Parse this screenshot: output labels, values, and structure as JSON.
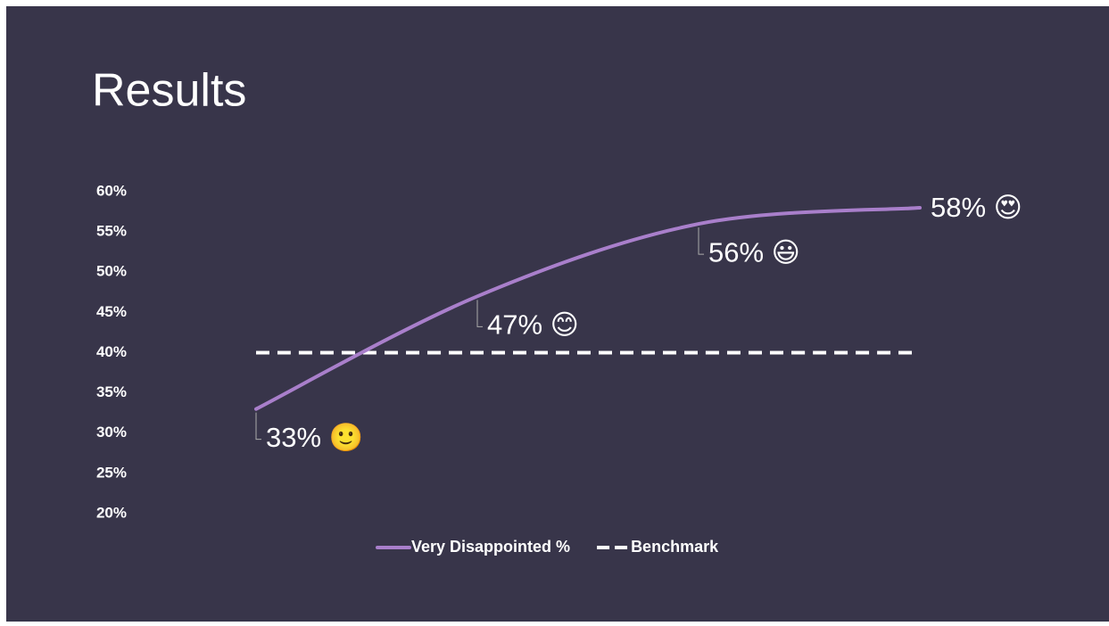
{
  "chart_data": {
    "type": "line",
    "title": "Results",
    "categories": [
      null,
      null,
      null,
      null
    ],
    "series": [
      {
        "name": "Very Disappointed %",
        "color": "#a97fcb",
        "dashed": false,
        "values": [
          33,
          47,
          56,
          58
        ],
        "value_labels": [
          "33% 🙂",
          "47% 😊",
          "56% 😃",
          "58% 😍"
        ]
      },
      {
        "name": "Benchmark",
        "color": "#ffffff",
        "dashed": true,
        "values": [
          40,
          40,
          40,
          40
        ]
      }
    ],
    "ylim": [
      20,
      60
    ],
    "yticks": [
      {
        "value": 20,
        "label": "20%"
      },
      {
        "value": 25,
        "label": "25%"
      },
      {
        "value": 30,
        "label": "30%"
      },
      {
        "value": 35,
        "label": "35%"
      },
      {
        "value": 40,
        "label": "40%"
      },
      {
        "value": 45,
        "label": "45%"
      },
      {
        "value": 50,
        "label": "50%"
      },
      {
        "value": 55,
        "label": "55%"
      },
      {
        "value": 60,
        "label": "60%"
      }
    ],
    "grid": false,
    "smooth": true,
    "legend": "bottom"
  }
}
